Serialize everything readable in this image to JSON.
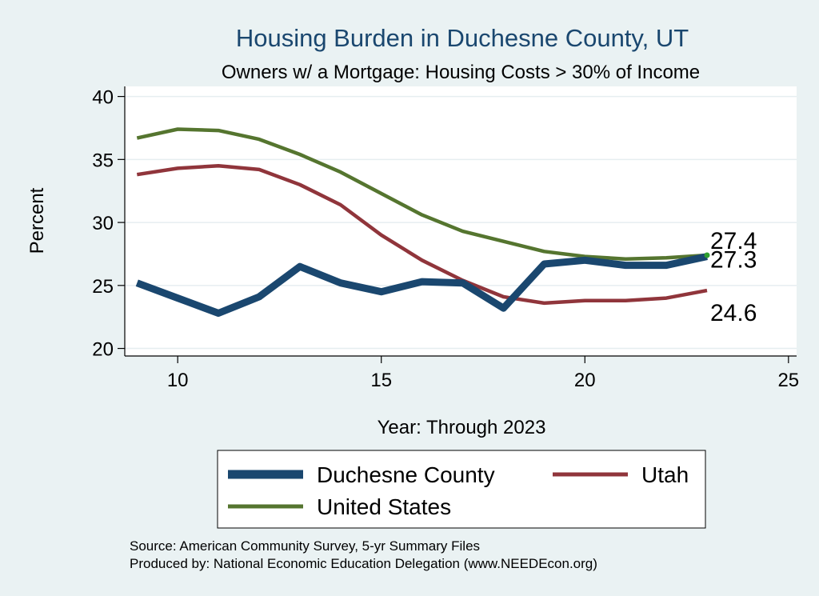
{
  "chart_data": {
    "type": "line",
    "title": "Housing Burden in Duchesne County, UT",
    "subtitle": "Owners w/ a Mortgage: Housing Costs > 30% of Income",
    "xlabel": "Year: Through 2023",
    "ylabel": "Percent",
    "xlim": [
      8.7,
      25.2
    ],
    "ylim": [
      19.4,
      40.8
    ],
    "xticks": [
      10,
      15,
      20,
      25
    ],
    "yticks": [
      20,
      25,
      30,
      35,
      40
    ],
    "grid": true,
    "legend_position": "bottom",
    "x": [
      9,
      10,
      11,
      12,
      13,
      14,
      15,
      16,
      17,
      18,
      19,
      20,
      21,
      22,
      23
    ],
    "series": [
      {
        "name": "Duchesne County",
        "color": "#1a476f",
        "width": "thick",
        "values": [
          25.2,
          24.0,
          22.8,
          24.1,
          26.5,
          25.2,
          24.5,
          25.3,
          25.2,
          23.2,
          26.7,
          27.0,
          26.6,
          26.6,
          27.3
        ],
        "end_label": "27.3"
      },
      {
        "name": "Utah",
        "color": "#90353b",
        "width": "medium",
        "values": [
          33.8,
          34.3,
          34.5,
          34.2,
          33.0,
          31.4,
          29.0,
          27.0,
          25.4,
          24.1,
          23.6,
          23.8,
          23.8,
          24.0,
          24.6
        ],
        "end_label": "24.6"
      },
      {
        "name": "United States",
        "color": "#55752f",
        "width": "medium",
        "values": [
          36.7,
          37.4,
          37.3,
          36.6,
          35.4,
          34.0,
          32.3,
          30.6,
          29.3,
          28.5,
          27.7,
          27.3,
          27.1,
          27.2,
          27.4
        ],
        "end_label": "27.4"
      }
    ],
    "source_lines": [
      "Source: American Community Survey, 5-yr Summary Files",
      "Produced by: National Economic Education Delegation (www.NEEDEcon.org)"
    ]
  }
}
